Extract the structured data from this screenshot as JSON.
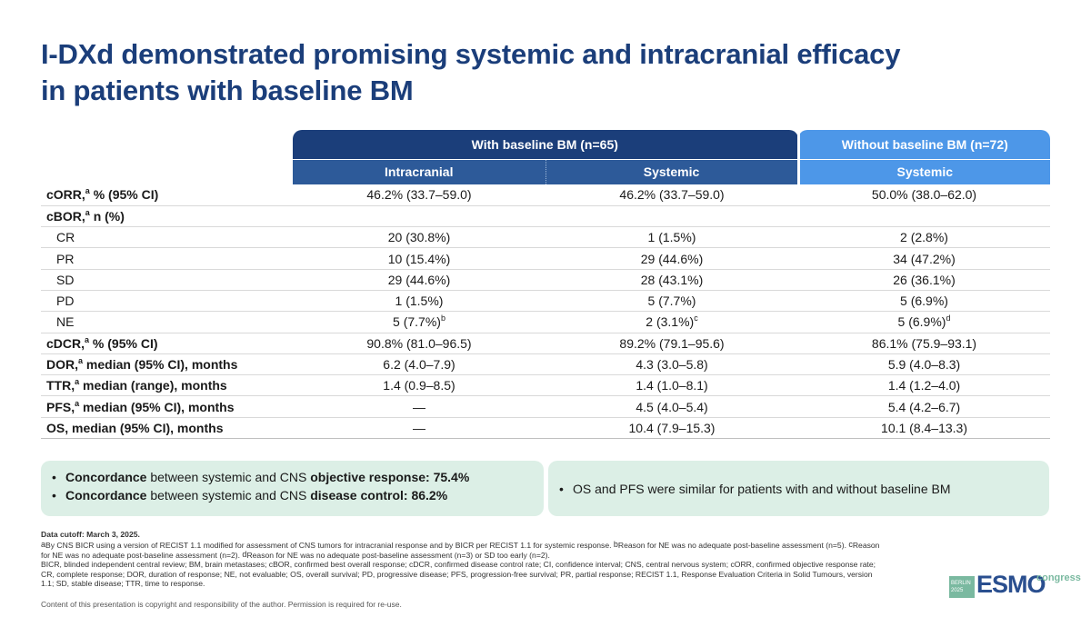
{
  "title": {
    "line1": "I-DXd demonstrated promising systemic and intracranial efficacy",
    "line2": "in patients with baseline BM"
  },
  "table": {
    "group_with": "With baseline BM (n=65)",
    "group_without": "Without baseline BM (n=72)",
    "sub_intracranial": "Intracranial",
    "sub_systemic_with": "Systemic",
    "sub_systemic_without": "Systemic",
    "rows": [
      {
        "label": "cORR,",
        "sup": "a",
        "label_rest": " % (95% CI)",
        "v1": "46.2% (33.7–59.0)",
        "v2": "46.2% (33.7–59.0)",
        "v3": "50.0% (38.0–62.0)"
      },
      {
        "label": "cBOR,",
        "sup": "a",
        "label_rest": " n (%)"
      },
      {
        "label": "CR",
        "v1": "20 (30.8%)",
        "v2": "1 (1.5%)",
        "v3": "2 (2.8%)"
      },
      {
        "label": "PR",
        "v1": "10 (15.4%)",
        "v2": "29 (44.6%)",
        "v3": "34 (47.2%)"
      },
      {
        "label": "SD",
        "v1": "29 (44.6%)",
        "v2": "28 (43.1%)",
        "v3": "26 (36.1%)"
      },
      {
        "label": "PD",
        "v1": "1 (1.5%)",
        "v2": "5 (7.7%)",
        "v3": "5 (6.9%)"
      },
      {
        "label": "NE",
        "v1": "5 (7.7%)",
        "v1_sup": "b",
        "v2": "2 (3.1%)",
        "v2_sup": "c",
        "v3": "5 (6.9%)",
        "v3_sup": "d"
      },
      {
        "label": "cDCR,",
        "sup": "a",
        "label_rest": " % (95% CI)",
        "v1": "90.8% (81.0–96.5)",
        "v2": "89.2% (79.1–95.6)",
        "v3": "86.1% (75.9–93.1)"
      },
      {
        "label": "DOR,",
        "sup": "a",
        "label_rest": " median (95% CI), months",
        "v1": "6.2 (4.0–7.9)",
        "v2": "4.3 (3.0–5.8)",
        "v3": "5.9 (4.0–8.3)"
      },
      {
        "label": "TTR,",
        "sup": "a",
        "label_rest": " median (range), months",
        "v1": "1.4 (0.9–8.5)",
        "v2": "1.4 (1.0–8.1)",
        "v3": "1.4 (1.2–4.0)"
      },
      {
        "label": "PFS,",
        "sup": "a",
        "label_rest": " median (95% CI), months",
        "v1": "—",
        "v2": "4.5 (4.0–5.4)",
        "v3": "5.4 (4.2–6.7)"
      },
      {
        "label": "OS, median (95% CI), months",
        "v1": "—",
        "v2": "10.4 (7.9–15.3)",
        "v3": "10.1 (8.4–13.3)"
      }
    ]
  },
  "box_left": {
    "b1_bold1": "Concordance",
    "b1_text1": " between systemic and CNS ",
    "b1_bold2": "objective response: 75.4%",
    "b2_bold1": "Concordance",
    "b2_text1": " between systemic and CNS ",
    "b2_bold2": "disease control: 86.2%",
    "bullet": "•"
  },
  "box_right": {
    "bullet": "•",
    "text": "OS and PFS were similar for patients with and without baseline BM"
  },
  "footnotes": {
    "cutoff": "Data cutoff: March 3, 2025.",
    "sup_a": "a",
    "line_a": "By CNS BICR using a version of RECIST 1.1 modified for assessment of CNS tumors for intracranial response and by BICR per RECIST 1.1 for systemic response. ",
    "sup_b": "b",
    "line_b": "Reason for NE was no adequate post-baseline assessment (n=5). ",
    "sup_c": "c",
    "line_c": "Reason for NE was no adequate post-baseline assessment (n=2). ",
    "sup_d": "d",
    "line_d": "Reason for NE was no adequate post-baseline assessment (n=3) or SD too early (n=2).",
    "abbrev": "BICR, blinded independent central review; BM, brain metastases; cBOR, confirmed best overall response; cDCR, confirmed disease control rate; CI, confidence interval; CNS, central nervous system; cORR, confirmed objective response rate; CR, complete response; DOR, duration of response; NE, not evaluable; OS, overall survival; PD, progressive disease; PFS, progression-free survival; PR, partial response; RECIST 1.1, Response Evaluation Criteria in Solid Tumours, version 1.1; SD, stable disease; TTR, time to response.",
    "copyright": "Content of this presentation is copyright and responsibility of the author. Permission is required for re-use."
  },
  "logo": {
    "city": "BERLIN",
    "year": "2025",
    "brand": "ESMO",
    "suffix": "congress"
  }
}
